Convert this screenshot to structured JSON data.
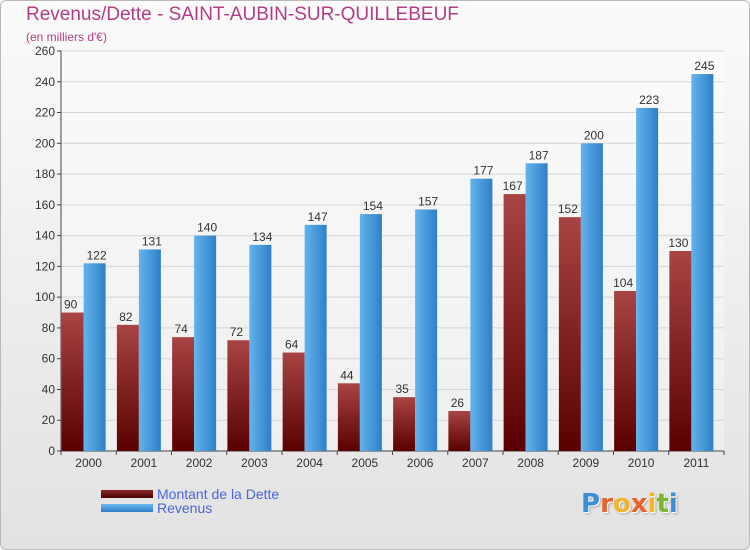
{
  "header": {
    "title": "Revenus/Dette - SAINT-AUBIN-SUR-QUILLEBEUF",
    "subtitle": "(en milliers d'€)"
  },
  "legend": {
    "items": [
      {
        "label": "Montant de la Dette",
        "color": "#6e0f10"
      },
      {
        "label": "Revenus",
        "color": "#4ea3e6"
      }
    ]
  },
  "logo": {
    "text": "Proxiti",
    "letter_colors": [
      "#3b8fd6",
      "#e8632b",
      "#f2b52b",
      "#e8632b",
      "#f2b52b",
      "#7bb72a",
      "#3b8fd6"
    ]
  },
  "colors": {
    "title": "#b23d86",
    "dette_top": "#a84444",
    "dette_bottom": "#5a0000",
    "revenus_top": "#63b3ee",
    "revenus_bottom": "#2f7fc7"
  },
  "chart_data": {
    "type": "bar",
    "title": "Revenus/Dette - SAINT-AUBIN-SUR-QUILLEBEUF",
    "subtitle": "(en milliers d'€)",
    "xlabel": "",
    "ylabel": "",
    "categories": [
      "2000",
      "2001",
      "2002",
      "2003",
      "2004",
      "2005",
      "2006",
      "2007",
      "2008",
      "2009",
      "2010",
      "2011"
    ],
    "series": [
      {
        "name": "Montant de la Dette",
        "values": [
          90,
          82,
          74,
          72,
          64,
          44,
          35,
          26,
          167,
          152,
          104,
          130
        ]
      },
      {
        "name": "Revenus",
        "values": [
          122,
          131,
          140,
          134,
          147,
          154,
          157,
          177,
          187,
          200,
          223,
          245
        ]
      }
    ],
    "ylim": [
      0,
      260
    ],
    "yticks": [
      0,
      20,
      40,
      60,
      80,
      100,
      120,
      140,
      160,
      180,
      200,
      220,
      240,
      260
    ],
    "grid": true,
    "legend_position": "bottom-left"
  }
}
